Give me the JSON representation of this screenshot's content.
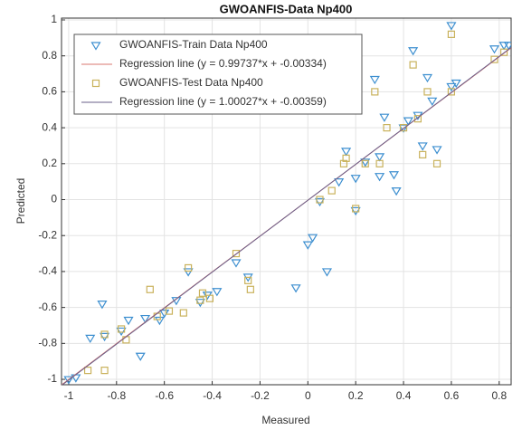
{
  "chart_data": {
    "type": "scatter",
    "title": "GWOANFIS-Data Np400",
    "xlabel": "Measured",
    "ylabel": "Predicted",
    "xlim": [
      -1.03,
      0.85
    ],
    "ylim": [
      -1.03,
      1.01
    ],
    "xticks": [
      -1,
      -0.8,
      -0.6,
      -0.4,
      -0.2,
      0,
      0.2,
      0.4,
      0.6,
      0.8
    ],
    "yticks": [
      -1,
      -0.8,
      -0.6,
      -0.4,
      -0.2,
      0,
      0.2,
      0.4,
      0.6,
      0.8,
      1
    ],
    "grid": true,
    "legend": "upper left",
    "series": [
      {
        "name": "GWOANFIS-Train Data Np400",
        "color": "#3d8fd0",
        "marker": "triangle-down",
        "x": [
          -1,
          -0.97,
          -0.91,
          -0.86,
          -0.85,
          -0.78,
          -0.75,
          -0.7,
          -0.68,
          -0.62,
          -0.6,
          -0.55,
          -0.5,
          -0.45,
          -0.42,
          -0.38,
          -0.3,
          -0.25,
          0,
          0.02,
          0.05,
          0.08,
          0.13,
          0.16,
          0.2,
          0.24,
          0.28,
          0.3,
          0.32,
          0.36,
          0.4,
          0.42,
          0.44,
          0.46,
          0.48,
          0.5,
          0.52,
          0.54,
          0.6,
          0.6,
          0.62,
          0.78,
          0.82,
          0.84,
          -0.05,
          0.3,
          0.2,
          0.37
        ],
        "y": [
          -1,
          -0.99,
          -0.77,
          -0.58,
          -0.76,
          -0.73,
          -0.67,
          -0.87,
          -0.66,
          -0.67,
          -0.63,
          -0.56,
          -0.4,
          -0.57,
          -0.53,
          -0.51,
          -0.35,
          -0.43,
          -0.25,
          -0.21,
          -0.01,
          -0.4,
          0.1,
          0.27,
          -0.06,
          0.21,
          0.67,
          0.24,
          0.46,
          0.14,
          0.4,
          0.44,
          0.83,
          0.47,
          0.3,
          0.68,
          0.55,
          0.28,
          0.97,
          0.63,
          0.65,
          0.84,
          0.86,
          0.86,
          -0.49,
          0.13,
          0.12,
          0.05
        ]
      },
      {
        "name": "GWOANFIS-Test Data Np400",
        "color": "#c9b25c",
        "marker": "square",
        "x": [
          -0.92,
          -0.85,
          -0.78,
          -0.76,
          -0.66,
          -0.63,
          -0.58,
          -0.52,
          -0.5,
          -0.45,
          -0.44,
          -0.41,
          -0.3,
          -0.25,
          -0.24,
          0.05,
          0.1,
          0.15,
          0.16,
          0.2,
          0.24,
          0.28,
          0.3,
          0.33,
          0.4,
          0.44,
          0.46,
          0.48,
          0.5,
          0.54,
          0.6,
          0.6,
          0.78,
          0.82,
          -0.85
        ],
        "y": [
          -0.95,
          -0.75,
          -0.72,
          -0.78,
          -0.5,
          -0.65,
          -0.62,
          -0.63,
          -0.38,
          -0.56,
          -0.52,
          -0.55,
          -0.3,
          -0.45,
          -0.5,
          0,
          0.05,
          0.2,
          0.23,
          -0.05,
          0.2,
          0.6,
          0.2,
          0.4,
          0.4,
          0.75,
          0.45,
          0.25,
          0.6,
          0.2,
          0.92,
          0.6,
          0.78,
          0.82,
          -0.95
        ]
      }
    ],
    "lines": [
      {
        "name": "Regression line (y = 0.99737*x + -0.00334)",
        "color": "#d9776f",
        "slope": 0.99737,
        "intercept": -0.00334
      },
      {
        "name": "Regression line (y = 1.00027*x + -0.00359)",
        "color": "#6a5f8a",
        "slope": 1.00027,
        "intercept": -0.00359
      }
    ]
  }
}
